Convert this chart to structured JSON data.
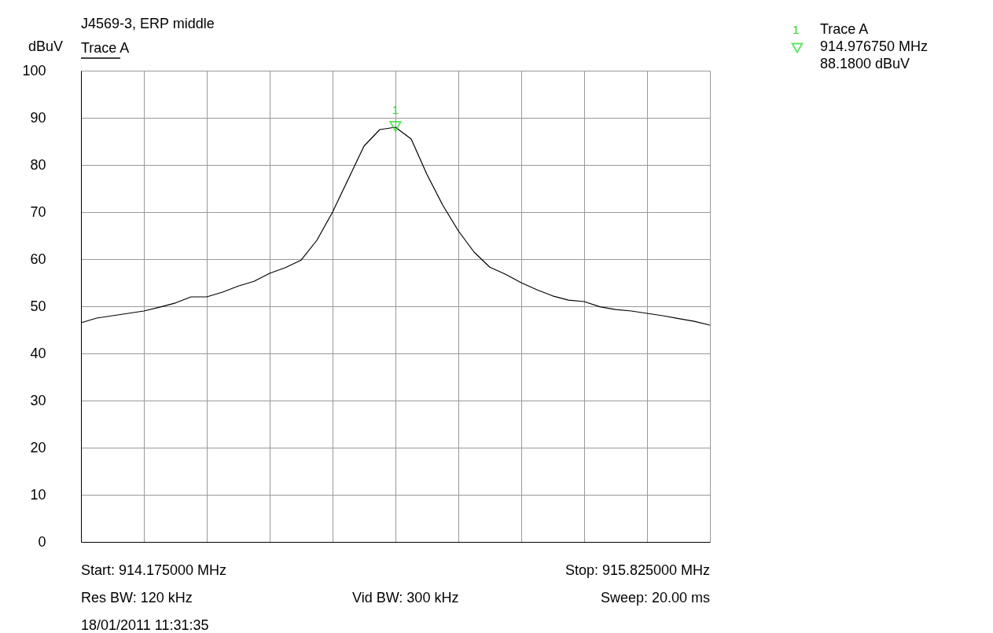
{
  "chart_data": {
    "type": "line",
    "title": "J4569-3, ERP middle",
    "ylabel": "dBuV",
    "categories": [
      null,
      null,
      null,
      null,
      null,
      null,
      null,
      null,
      null,
      null,
      null,
      null,
      null,
      null,
      null,
      null,
      null,
      null,
      null,
      null,
      null,
      null,
      null,
      null,
      null,
      null,
      null,
      null,
      null,
      null,
      null,
      null,
      null,
      null,
      null,
      null,
      null,
      null,
      null,
      null,
      null
    ],
    "series": [
      {
        "name": "Trace A",
        "color": "#000000",
        "values": [
          46.5,
          47.5,
          48,
          48.5,
          49,
          49.8,
          50.7,
          52,
          52,
          53,
          54.3,
          55.3,
          57,
          58.2,
          59.8,
          64,
          70,
          77,
          84,
          87.5,
          88,
          85.5,
          78,
          71.5,
          66,
          61.5,
          58.3,
          56.8,
          55,
          53.5,
          52.2,
          51.3,
          51,
          49.9,
          49.3,
          49,
          48.5,
          48,
          47.4,
          46.8,
          46
        ]
      }
    ],
    "ylim": [
      0,
      100
    ],
    "yticks": [
      0,
      10,
      20,
      30,
      40,
      50,
      60,
      70,
      80,
      90,
      100
    ],
    "grid": true,
    "legend": "top left",
    "tick_labels": "y",
    "line_style": "solid",
    "annotations": [
      {
        "text": "1",
        "y": 88.18
      },
      "Start: 914.175000 MHz",
      "Stop: 915.825000 MHz",
      "Res BW: 120 kHz",
      "Vid BW: 300 kHz",
      "Sweep: 20.00 ms",
      "18/01/2011 11:31:35",
      "1",
      "Trace A",
      "914.976750 MHz",
      "88.1800 dBuV"
    ]
  }
}
